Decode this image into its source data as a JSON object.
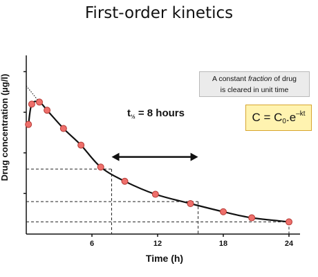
{
  "title": "First-order kinetics",
  "info_box": {
    "line1_before": "A constant ",
    "line1_emph": "fraction",
    "line1_after": " of drug",
    "line2": "is cleared in unit time"
  },
  "formula": {
    "lhs": "C = C",
    "sub": "0",
    "mid": ".e",
    "sup": "–kt"
  },
  "half_life": {
    "prefix": "t",
    "sub": "½",
    "text": " = 8 hours"
  },
  "colors": {
    "point_fill": "#ee6f6b",
    "point_stroke": "#b53a35",
    "curve": "#111111",
    "formula_bg": "#fff3b0",
    "formula_border": "#d7a52d",
    "info_bg": "#ebebeb"
  },
  "chart_data": {
    "type": "line",
    "title": "First-order kinetics",
    "xlabel": "Time (h)",
    "ylabel": "Drug concentration (µg/l)",
    "xlim": [
      0,
      24
    ],
    "ylim": [
      0,
      4.4
    ],
    "xticks": [
      6,
      12,
      18,
      24
    ],
    "grid": false,
    "y_ticks_unlabeled": [
      1,
      2,
      3,
      4
    ],
    "series": [
      {
        "x": [
          0.2,
          0.5,
          1.2,
          1.9,
          3.4,
          5.0,
          6.8,
          9.0,
          11.8,
          15.0,
          18.0,
          20.6,
          24.0
        ],
        "values": [
          2.7,
          3.2,
          3.25,
          3.05,
          2.6,
          2.19,
          1.65,
          1.3,
          0.98,
          0.75,
          0.55,
          0.4,
          0.3
        ]
      }
    ],
    "extrapolation_to_y_axis": {
      "x": [
        0.0,
        1.2
      ],
      "y": [
        3.65,
        3.25
      ]
    },
    "half_life_guides": [
      {
        "x": 7.8,
        "y": 1.6
      },
      {
        "x": 15.7,
        "y": 0.8
      },
      {
        "x": 24.0,
        "y": 0.3
      }
    ],
    "half_life_arrow": {
      "x_start": 7.8,
      "x_end": 15.7,
      "y": 1.9
    }
  }
}
